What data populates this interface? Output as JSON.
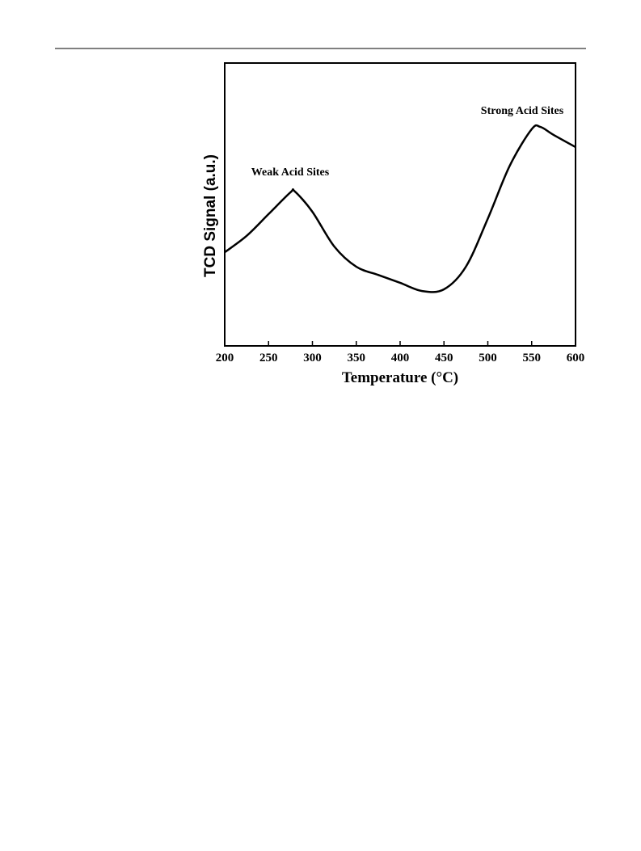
{
  "chart_data": {
    "type": "line",
    "x_label": "Temperature (°C)",
    "y_label": "TCD Signal (a.u.)",
    "x": [
      200,
      225,
      250,
      275,
      280,
      300,
      325,
      350,
      375,
      400,
      425,
      450,
      475,
      500,
      525,
      550,
      560,
      575,
      600
    ],
    "series": [
      {
        "color": "#000000",
        "values": [
          33.1,
          38.9,
          46.6,
          54.3,
          54.6,
          47.4,
          35.1,
          28,
          25.1,
          22.3,
          19.4,
          20,
          28,
          45,
          63.7,
          76.6,
          77.4,
          74.6,
          70.3
        ]
      }
    ],
    "xlim": [
      200,
      600
    ],
    "xticks": [
      200,
      250,
      300,
      350,
      400,
      450,
      500,
      550,
      600
    ],
    "ylim": [
      0,
      100
    ],
    "annotations": [
      "Weak Acid Sites",
      "Strong Acid Sites"
    ]
  }
}
